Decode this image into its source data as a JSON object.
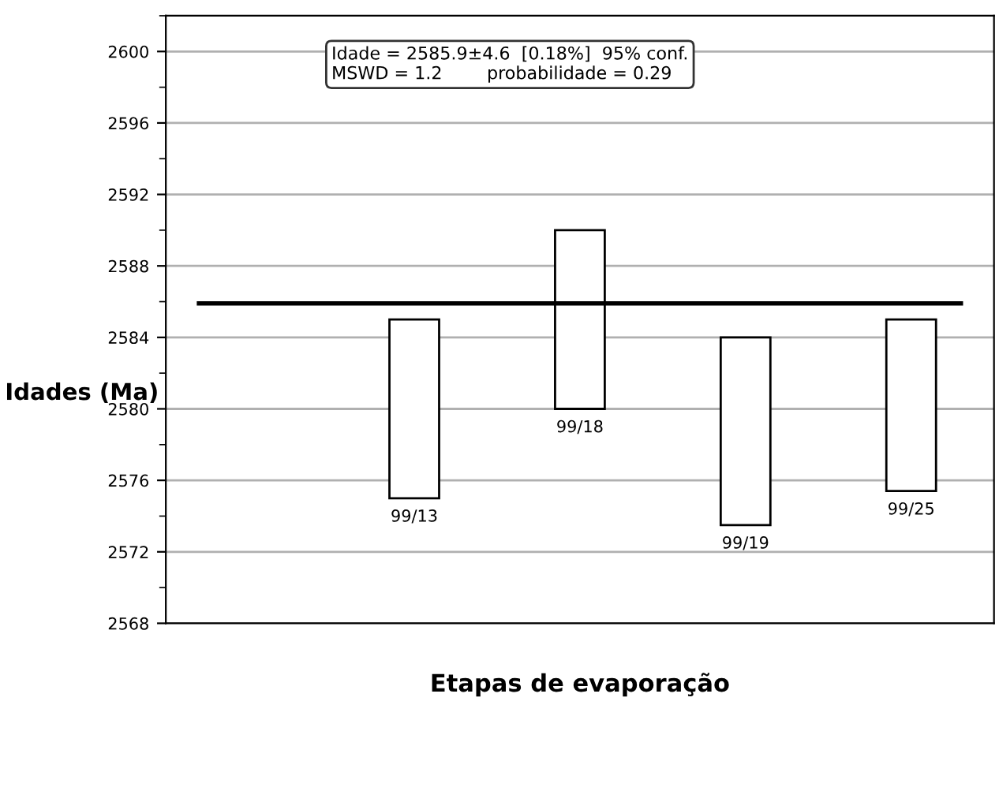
{
  "chart_data": {
    "type": "bar",
    "ylabel": "Idades (Ma)",
    "xlabel": "Etapas de evaporação",
    "categories": [
      null,
      "99/13",
      "99/18",
      "99/19",
      "99/25"
    ],
    "base": [
      null,
      2575,
      2580,
      2573.5,
      2575.4
    ],
    "values": [
      null,
      10,
      10,
      10.5,
      9.6
    ],
    "color": "#ffffff",
    "ylim": [
      2568,
      2602
    ],
    "yticks": [
      2568,
      2572,
      2576,
      2580,
      2584,
      2588,
      2592,
      2596,
      2600
    ],
    "grid": "y",
    "tick_labels": "y",
    "ref_lines": [
      {
        "axis": "y",
        "value": 2585.9,
        "color": "#000000"
      }
    ],
    "annotations": [
      "Idade = 2585.9±4.6  [0.18%]  95% conf.",
      "MSWD = 1.2        probabilidade = 0.29"
    ]
  }
}
